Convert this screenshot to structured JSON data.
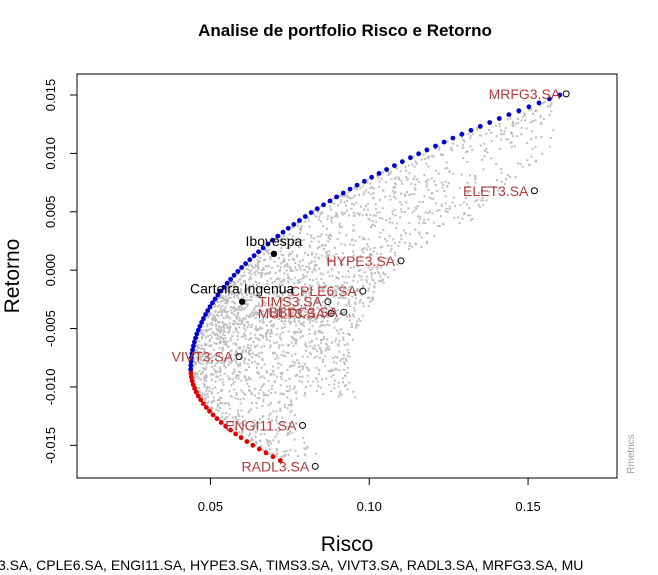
{
  "chart_data": {
    "type": "scatter",
    "title": "Analise de portfolio Risco e Retorno",
    "xlabel": "Risco",
    "ylabel": "Retorno",
    "xlim": [
      0.008,
      0.178
    ],
    "ylim": [
      -0.0178,
      0.0168
    ],
    "xticks": [
      0.05,
      0.1,
      0.15
    ],
    "xtick_labels": [
      "0.05",
      "0.10",
      "0.15"
    ],
    "yticks": [
      -0.015,
      -0.01,
      -0.005,
      0.0,
      0.005,
      0.01,
      0.015
    ],
    "ytick_labels": [
      "-0.015",
      "-0.010",
      "-0.005",
      "0.000",
      "0.005",
      "0.010",
      "0.015"
    ],
    "grid": false,
    "colors": {
      "random_portfolios": "#bebebe",
      "efficient_frontier": "#0000cd",
      "inefficient_frontier": "#e00000",
      "asset_label": "#b03a3a",
      "reference_point": "#000000"
    },
    "assets": [
      {
        "name": "MRFG3.SA",
        "risk": 0.162,
        "return": 0.0151
      },
      {
        "name": "ELET3.SA",
        "risk": 0.152,
        "return": 0.0068
      },
      {
        "name": "HYPE3.SA",
        "risk": 0.11,
        "return": 0.0008
      },
      {
        "name": "CPLE6.SA",
        "risk": 0.098,
        "return": -0.0018
      },
      {
        "name": "TIMS3.SA",
        "risk": 0.087,
        "return": -0.0027
      },
      {
        "name": "BBDC3.SA",
        "risk": 0.092,
        "return": -0.0036
      },
      {
        "name": "MULT3.SA",
        "risk": 0.088,
        "return": -0.0037
      },
      {
        "name": "VIVT3.SA",
        "risk": 0.059,
        "return": -0.0074
      },
      {
        "name": "ENGI11.SA",
        "risk": 0.079,
        "return": -0.0133
      },
      {
        "name": "RADL3.SA",
        "risk": 0.083,
        "return": -0.0168
      }
    ],
    "asset_labels_drawn": [
      {
        "text": "MRFG3.SA",
        "asset": "MRFG3.SA"
      },
      {
        "text": "ELET3.SA",
        "asset": "ELET3.SA"
      },
      {
        "text": "HYPE3.SA",
        "asset": "HYPE3.SA"
      },
      {
        "text": "CPLE6.SA",
        "asset": "CPLE6.SA"
      },
      {
        "text": "TIMS3.SA",
        "asset": "TIMS3.SA"
      },
      {
        "text": "BBDC3.SA",
        "asset": "BBDC3.SA"
      },
      {
        "text": "MULT3.SA",
        "asset": "MULT3.SA"
      },
      {
        "text": "VIVT3.SA",
        "asset": "VIVT3.SA"
      },
      {
        "text": "ENGI11.SA",
        "asset": "ENGI11.SA"
      },
      {
        "text": "RADL3.SA",
        "asset": "RADL3.SA"
      }
    ],
    "reference_points": [
      {
        "name": "Ibovespa",
        "risk": 0.07,
        "return": 0.0014
      },
      {
        "name": "Carteira Ingenua",
        "risk": 0.06,
        "return": -0.0027
      }
    ],
    "efficient_frontier": {
      "min_variance_risk": 0.0438,
      "min_variance_return": -0.0085,
      "upper_end": {
        "risk": 0.16,
        "return": 0.015
      },
      "lower_end": {
        "risk": 0.072,
        "return": -0.0163
      }
    },
    "footer": "3.SA, CPLE6.SA, ENGI11.SA, HYPE3.SA, TIMS3.SA, VIVT3.SA, RADL3.SA, MRFG3.SA, MU",
    "watermark": "Rmetrics"
  }
}
